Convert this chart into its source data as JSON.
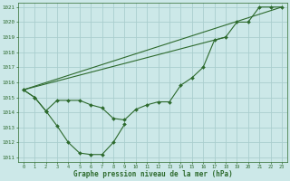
{
  "xlabel": "Graphe pression niveau de la mer (hPa)",
  "bg_color": "#cce8e8",
  "grid_color": "#aacece",
  "line_color": "#2d6a2d",
  "ylim_min": 1011,
  "ylim_max": 1021,
  "xlim_min": -0.5,
  "xlim_max": 23.5,
  "yticks": [
    1011,
    1012,
    1013,
    1014,
    1015,
    1016,
    1017,
    1018,
    1019,
    1020,
    1021
  ],
  "xticks": [
    0,
    1,
    2,
    3,
    4,
    5,
    6,
    7,
    8,
    9,
    10,
    11,
    12,
    13,
    14,
    15,
    16,
    17,
    18,
    19,
    20,
    21,
    22,
    23
  ],
  "curve_dip_x": [
    0,
    1,
    2,
    3,
    4,
    5,
    6,
    7,
    8,
    9
  ],
  "curve_dip_y": [
    1015.5,
    1015.0,
    1014.1,
    1013.1,
    1012.0,
    1011.3,
    1011.2,
    1011.2,
    1012.0,
    1013.2
  ],
  "curve_main_x": [
    0,
    1,
    2,
    3,
    4,
    5,
    6,
    7,
    8,
    9,
    10,
    11,
    12,
    13,
    14,
    15,
    16,
    17,
    18,
    19,
    20,
    21,
    22,
    23
  ],
  "curve_main_y": [
    1015.5,
    1015.0,
    1014.1,
    1014.8,
    1014.8,
    1014.8,
    1014.5,
    1014.3,
    1013.6,
    1013.5,
    1014.2,
    1014.5,
    1014.7,
    1014.7,
    1015.8,
    1016.3,
    1017.0,
    1018.8,
    1019.0,
    1020.0,
    1020.0,
    1021.0,
    1021.0,
    1021.0
  ],
  "line1_x": [
    0,
    18
  ],
  "line1_y": [
    1015.5,
    1019.0
  ],
  "line2_x": [
    0,
    23
  ],
  "line2_y": [
    1015.5,
    1021.0
  ]
}
